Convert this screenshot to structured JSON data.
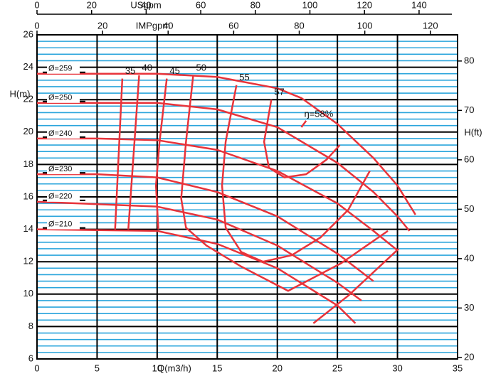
{
  "chart_data": {
    "type": "line",
    "x_label": "Q(m3/h)",
    "y_label": "H(m)",
    "y2_label": "H(ft)",
    "xlim": [
      0,
      35
    ],
    "xticks": [
      0,
      5,
      10,
      15,
      20,
      25,
      30,
      35
    ],
    "ylim": [
      6,
      26
    ],
    "yticks": [
      6,
      8,
      10,
      12,
      14,
      16,
      18,
      20,
      22,
      24,
      26
    ],
    "y2lim": [
      19.69,
      85.3
    ],
    "y2ticks": [
      20,
      30,
      40,
      50,
      60,
      70,
      80
    ],
    "top_axes": [
      {
        "label": "USgpm",
        "xlim": [
          0,
          154.1
        ],
        "xticks": [
          0,
          20,
          40,
          60,
          80,
          100,
          120,
          140
        ]
      },
      {
        "label": "IMPgpm",
        "xlim": [
          0,
          128.3
        ],
        "xticks": [
          0,
          20,
          40,
          60,
          80,
          100,
          120
        ]
      }
    ],
    "grid": true,
    "minor_grid_color": "#2aa5dc",
    "series": [
      {
        "name": "Ø=259",
        "color": "#e8333a",
        "x": [
          0,
          10,
          15,
          20,
          22,
          25,
          28,
          30,
          31.5
        ],
        "values": [
          23.6,
          23.6,
          23.4,
          22.7,
          22.1,
          20.5,
          18.4,
          16.7,
          14.9
        ]
      },
      {
        "name": "Ø=250",
        "color": "#e8333a",
        "x": [
          0,
          5,
          10,
          15,
          20,
          25,
          28,
          30,
          31
        ],
        "values": [
          21.8,
          21.8,
          21.8,
          21.4,
          20.3,
          18.1,
          16.3,
          14.8,
          13.9
        ]
      },
      {
        "name": "Ø=240",
        "color": "#e8333a",
        "x": [
          0,
          5,
          10,
          15,
          20,
          25,
          28,
          30
        ],
        "values": [
          19.6,
          19.6,
          19.5,
          18.9,
          17.6,
          15.6,
          13.9,
          12.7
        ]
      },
      {
        "name": "Ø=230",
        "color": "#e8333a",
        "x": [
          0,
          5,
          10,
          15,
          20,
          25,
          28
        ],
        "values": [
          17.4,
          17.4,
          17.2,
          16.3,
          14.8,
          12.5,
          10.8
        ]
      },
      {
        "name": "Ø=220",
        "color": "#e8333a",
        "x": [
          0,
          10,
          15,
          20,
          25,
          27
        ],
        "values": [
          15.7,
          15.4,
          14.6,
          13.0,
          10.7,
          9.6
        ]
      },
      {
        "name": "Ø=210",
        "color": "#e8333a",
        "x": [
          0,
          10,
          15,
          20,
          25,
          26.5
        ],
        "values": [
          14.0,
          13.9,
          13.1,
          11.6,
          9.3,
          8.2
        ]
      }
    ],
    "efficiency_series": [
      {
        "name": "35",
        "color": "#e8333a",
        "x": [
          7.1,
          6.5
        ],
        "values": [
          23.3,
          14.0
        ]
      },
      {
        "name": "40",
        "color": "#e8333a",
        "x": [
          8.5,
          7.6
        ],
        "values": [
          23.5,
          14.0
        ]
      },
      {
        "name": "45",
        "color": "#e8333a",
        "x": [
          10.8,
          10.2,
          9.9,
          10.1,
          null,
          23.0,
          25.9,
          30.1
        ],
        "values": [
          23.3,
          19.4,
          16.7,
          14.0,
          null,
          8.2,
          9.9,
          12.8
        ]
      },
      {
        "name": "50",
        "color": "#e8333a",
        "x": [
          13.0,
          12.4,
          12.0,
          12.4,
          14.1,
          17.0,
          20.9,
          25.3,
          29.2
        ],
        "values": [
          23.5,
          19.4,
          15.9,
          14.1,
          13.0,
          11.7,
          10.2,
          11.9,
          13.9
        ]
      },
      {
        "name": "55",
        "color": "#e8333a",
        "x": [
          16.6,
          15.7,
          15.4,
          15.7,
          17.0,
          18.8,
          21.2,
          23.6,
          25.9,
          27.7
        ],
        "values": [
          22.9,
          19.4,
          16.7,
          14.1,
          12.6,
          12.0,
          12.4,
          13.5,
          15.2,
          17.6
        ]
      },
      {
        "name": "57",
        "color": "#e8333a",
        "x": [
          19.5,
          18.9,
          19.3,
          20.6,
          22.4,
          24.1,
          25.2
        ],
        "values": [
          22.0,
          19.4,
          17.8,
          17.2,
          17.4,
          18.3,
          19.2
        ]
      },
      {
        "name": "ŋ=58%",
        "color": "#e8333a",
        "x": [
          22.0,
          22.4
        ],
        "values": [
          20.3,
          20.7
        ]
      }
    ]
  }
}
